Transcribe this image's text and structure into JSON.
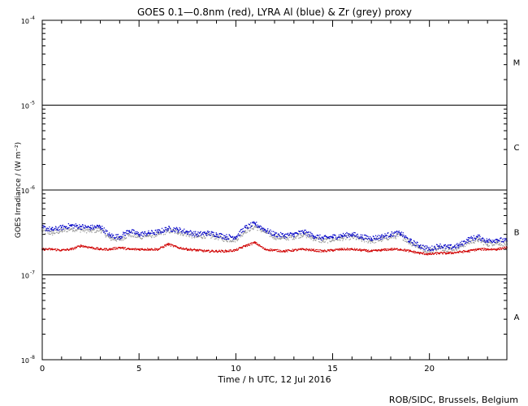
{
  "chart_data": {
    "type": "scatter",
    "title": "GOES 0.1—0.8nm (red), LYRA Al (blue) & Zr (grey) proxy",
    "xlabel": "Time / h UTC, 12 Jul 2016",
    "ylabel": "GOES Irradiance / (W m⁻²)",
    "xlim": [
      0,
      24
    ],
    "ylim": [
      1e-08,
      0.0001
    ],
    "yscale": "log",
    "x_ticks": [
      0,
      5,
      10,
      15,
      20
    ],
    "x_tick_labels": [
      "0",
      "5",
      "10",
      "15",
      "20"
    ],
    "y_tick_labels": [
      {
        "value": 1e-08,
        "base": "10",
        "exp": "-8"
      },
      {
        "value": 1e-07,
        "base": "10",
        "exp": "-7"
      },
      {
        "value": 1e-06,
        "base": "10",
        "exp": "-6"
      },
      {
        "value": 1e-05,
        "base": "10",
        "exp": "-5"
      },
      {
        "value": 0.0001,
        "base": "10",
        "exp": "-4"
      }
    ],
    "threshold_lines": [
      1e-07,
      1e-06,
      1e-05
    ],
    "class_labels": [
      {
        "label": "A",
        "value": 3.2e-08
      },
      {
        "label": "B",
        "value": 3.2e-07
      },
      {
        "label": "C",
        "value": 3.2e-06
      },
      {
        "label": "M",
        "value": 3.2e-05
      }
    ],
    "grid": false,
    "series": [
      {
        "color": "#d00000",
        "x": [
          0,
          0.5,
          1,
          1.5,
          2,
          2.5,
          3,
          3.5,
          4,
          4.5,
          5,
          5.5,
          6,
          6.5,
          7,
          7.5,
          8,
          8.5,
          9,
          9.5,
          10,
          10.5,
          11,
          11.5,
          12,
          12.5,
          13,
          13.5,
          14,
          14.5,
          15,
          15.5,
          16,
          16.5,
          17,
          17.5,
          18,
          18.5,
          19,
          19.5,
          20,
          20.5,
          21,
          21.5,
          22,
          22.5,
          23,
          23.5,
          24
        ],
        "y": [
          2e-07,
          2e-07,
          1.95e-07,
          2e-07,
          2.2e-07,
          2.1e-07,
          2e-07,
          2e-07,
          2.1e-07,
          2e-07,
          2e-07,
          2e-07,
          2e-07,
          2.3e-07,
          2.1e-07,
          2e-07,
          1.95e-07,
          1.9e-07,
          1.9e-07,
          1.9e-07,
          1.95e-07,
          2.2e-07,
          2.4e-07,
          2e-07,
          1.95e-07,
          1.9e-07,
          1.95e-07,
          2e-07,
          1.95e-07,
          1.9e-07,
          1.95e-07,
          2e-07,
          2e-07,
          1.95e-07,
          1.9e-07,
          1.95e-07,
          2e-07,
          2e-07,
          1.9e-07,
          1.8e-07,
          1.75e-07,
          1.8e-07,
          1.8e-07,
          1.85e-07,
          1.9e-07,
          2e-07,
          2e-07,
          2e-07,
          2.1e-07
        ]
      },
      {
        "color": "#0000c8",
        "x": [
          0,
          0.5,
          1,
          1.5,
          2,
          2.5,
          3,
          3.5,
          4,
          4.5,
          5,
          5.5,
          6,
          6.5,
          7,
          7.5,
          8,
          8.5,
          9,
          9.5,
          10,
          10.5,
          11,
          11.5,
          12,
          12.5,
          13,
          13.5,
          14,
          14.5,
          15,
          15.5,
          16,
          16.5,
          17,
          17.5,
          18,
          18.5,
          19,
          19.5,
          20,
          20.5,
          21,
          21.5,
          22,
          22.5,
          23,
          23.5,
          24
        ],
        "y": [
          3.6e-07,
          3.4e-07,
          3.6e-07,
          3.8e-07,
          3.7e-07,
          3.6e-07,
          3.7e-07,
          2.9e-07,
          2.8e-07,
          3.3e-07,
          3e-07,
          3.1e-07,
          3.2e-07,
          3.5e-07,
          3.4e-07,
          3.2e-07,
          3e-07,
          3.1e-07,
          3e-07,
          2.8e-07,
          2.8e-07,
          3.6e-07,
          4e-07,
          3.4e-07,
          3e-07,
          2.9e-07,
          3e-07,
          3.2e-07,
          2.9e-07,
          2.7e-07,
          2.8e-07,
          2.9e-07,
          3e-07,
          2.8e-07,
          2.7e-07,
          2.8e-07,
          3e-07,
          3.1e-07,
          2.5e-07,
          2.2e-07,
          2e-07,
          2.2e-07,
          2.1e-07,
          2.2e-07,
          2.6e-07,
          2.8e-07,
          2.5e-07,
          2.6e-07,
          2.5e-07
        ]
      },
      {
        "color": "#999999",
        "x": [
          0,
          0.5,
          1,
          1.5,
          2,
          2.5,
          3,
          3.5,
          4,
          4.5,
          5,
          5.5,
          6,
          6.5,
          7,
          7.5,
          8,
          8.5,
          9,
          9.5,
          10,
          10.5,
          11,
          11.5,
          12,
          12.5,
          13,
          13.5,
          14,
          14.5,
          15,
          15.5,
          16,
          16.5,
          17,
          17.5,
          18,
          18.5,
          19,
          19.5,
          20,
          20.5,
          21,
          21.5,
          22,
          22.5,
          23,
          23.5,
          24
        ],
        "y": [
          3.3e-07,
          3.1e-07,
          3.3e-07,
          3.5e-07,
          3.4e-07,
          3.3e-07,
          3.4e-07,
          2.7e-07,
          2.6e-07,
          3e-07,
          2.8e-07,
          2.9e-07,
          3e-07,
          3.3e-07,
          3.2e-07,
          3e-07,
          2.8e-07,
          2.9e-07,
          2.8e-07,
          2.6e-07,
          2.6e-07,
          3.3e-07,
          3.7e-07,
          3.2e-07,
          2.8e-07,
          2.7e-07,
          2.8e-07,
          3e-07,
          2.7e-07,
          2.5e-07,
          2.6e-07,
          2.7e-07,
          2.8e-07,
          2.6e-07,
          2.5e-07,
          2.6e-07,
          2.8e-07,
          2.9e-07,
          2.4e-07,
          2.1e-07,
          1.9e-07,
          2.1e-07,
          2e-07,
          2.1e-07,
          2.4e-07,
          2.6e-07,
          2.3e-07,
          2.4e-07,
          2.3e-07
        ]
      }
    ],
    "footer": "ROB/SIDC, Brussels, Belgium"
  }
}
